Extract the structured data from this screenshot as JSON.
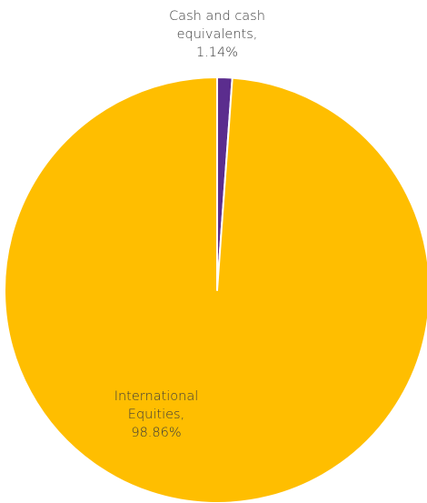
{
  "chart_data": {
    "type": "pie",
    "title": "",
    "slices": [
      {
        "label": "Cash and cash equivalents",
        "value": 1.14,
        "display_label": [
          "Cash and cash",
          "equivalents,",
          "1.14%"
        ],
        "color": "#5B2D8E"
      },
      {
        "label": "International Equities",
        "value": 98.86,
        "display_label": [
          "International",
          "Equities,",
          "98.86%"
        ],
        "color": "#FFBE00"
      }
    ],
    "start_angle_deg": 0,
    "direction": "clockwise",
    "slice_border_color": "#ffffff",
    "label_text_color": "#3b3b3b",
    "legend": "none"
  }
}
